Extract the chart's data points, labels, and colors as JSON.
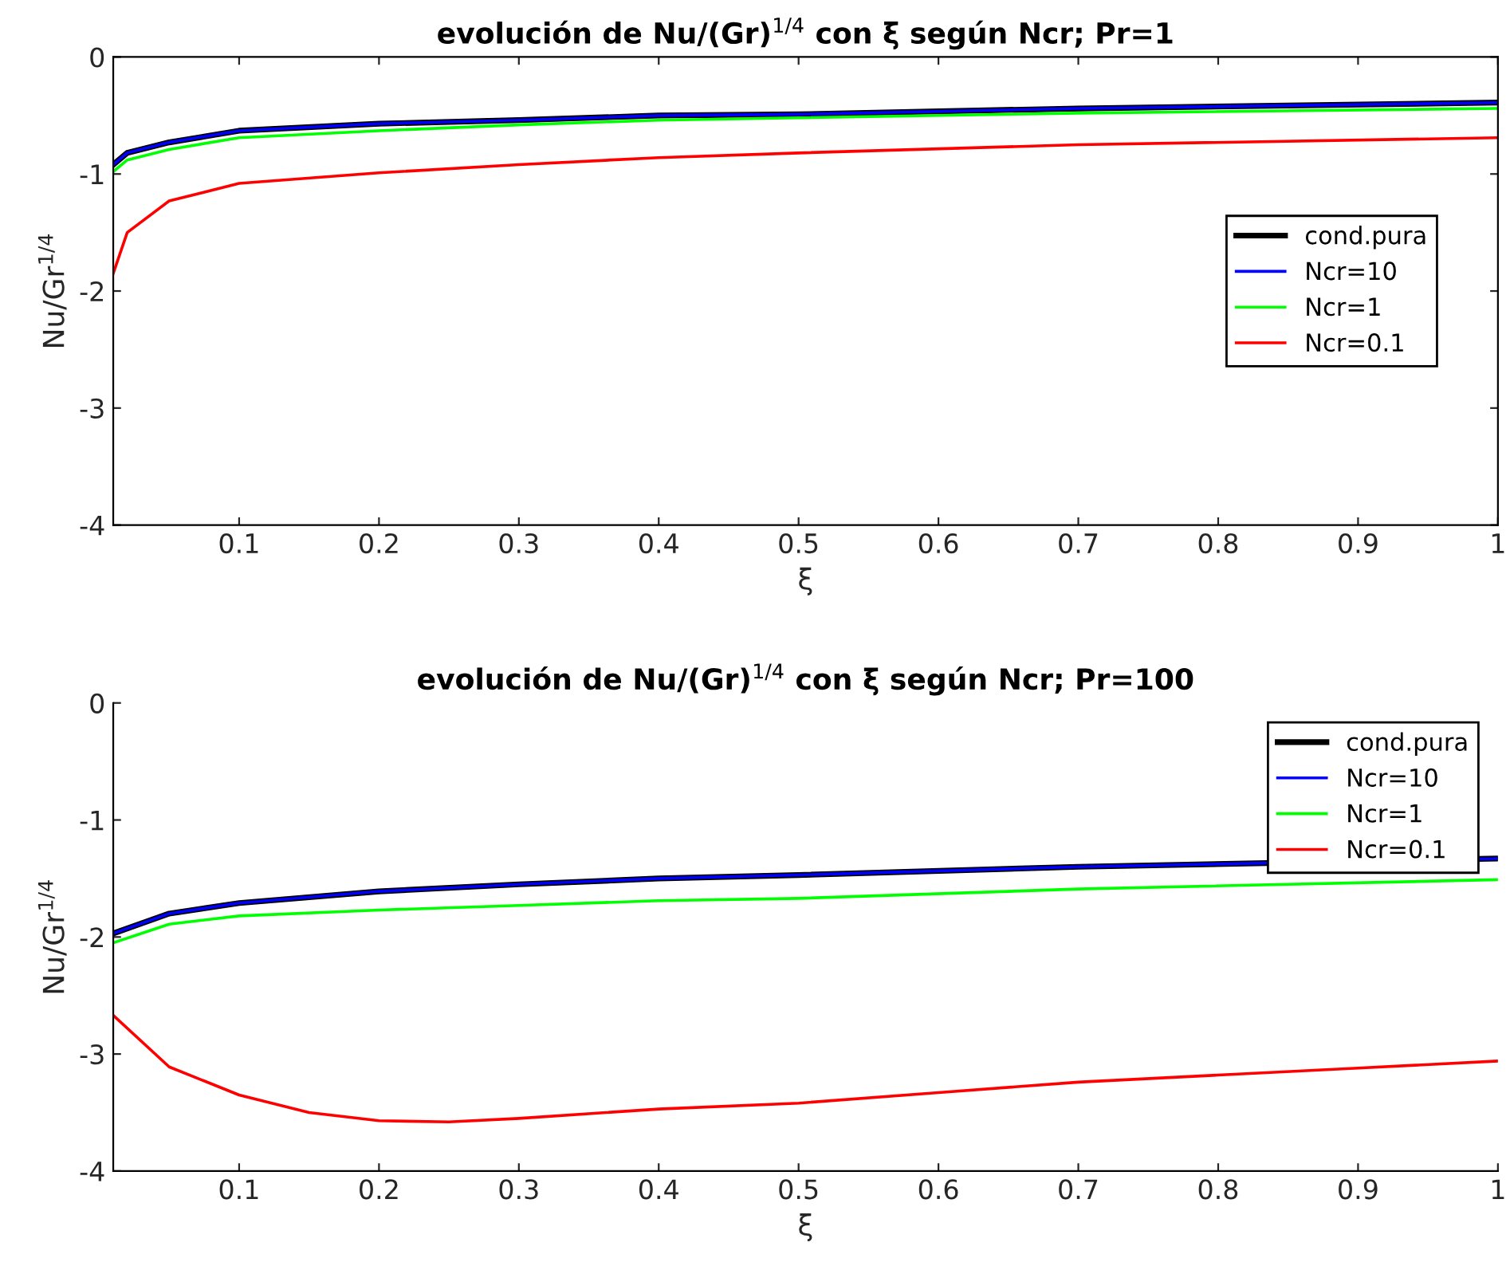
{
  "chart_data": [
    {
      "type": "line",
      "title": "evolución de Nu/(Gr)$^{1/4}$ con ξ según Ncr; Pr=1",
      "xlabel": "ξ",
      "ylabel": "Nu/Gr$^{1/4}$",
      "x": [
        0.01,
        0.02,
        0.05,
        0.1,
        0.2,
        0.3,
        0.4,
        0.5,
        0.7,
        1
      ],
      "series": [
        {
          "name": "cond.pura",
          "color": "#000000",
          "values": [
            -0.92,
            -0.82,
            -0.73,
            -0.63,
            -0.57,
            -0.54,
            -0.5,
            -0.49,
            -0.44,
            -0.39
          ]
        },
        {
          "name": "Ncr=10",
          "color": "#0000ff",
          "values": [
            -0.92,
            -0.82,
            -0.73,
            -0.63,
            -0.57,
            -0.54,
            -0.5,
            -0.49,
            -0.44,
            -0.39
          ]
        },
        {
          "name": "Ncr=1",
          "color": "#00ff00",
          "values": [
            -0.98,
            -0.88,
            -0.79,
            -0.69,
            -0.63,
            -0.58,
            -0.54,
            -0.52,
            -0.48,
            -0.44
          ]
        },
        {
          "name": "Ncr=0.1",
          "color": "#ff0000",
          "values": [
            -1.85,
            -1.5,
            -1.23,
            -1.08,
            -0.99,
            -0.92,
            -0.86,
            -0.82,
            -0.75,
            -0.69
          ]
        }
      ],
      "xlim": [
        0.01,
        1
      ],
      "xticks": [
        0.1,
        0.2,
        0.3,
        0.4,
        0.5,
        0.6,
        0.7,
        0.8,
        0.9,
        1
      ],
      "ylim": [
        -4,
        0
      ],
      "yticks": [
        -4,
        -3,
        -2,
        -1,
        0
      ],
      "legend": "center right",
      "grid": false
    },
    {
      "type": "line",
      "title": "evolución de Nu/(Gr)$^{1/4}$ con ξ según Ncr; Pr=100",
      "xlabel": "ξ",
      "ylabel": "Nu/Gr$^{1/4}$",
      "x": [
        0.01,
        0.05,
        0.1,
        0.2,
        0.3,
        0.4,
        0.5,
        0.7,
        1
      ],
      "series": [
        {
          "name": "cond.pura",
          "color": "#000000",
          "values": [
            -1.97,
            -1.8,
            -1.71,
            -1.61,
            -1.55,
            -1.5,
            -1.47,
            -1.4,
            -1.33
          ]
        },
        {
          "name": "Ncr=10",
          "color": "#0000ff",
          "values": [
            -1.97,
            -1.8,
            -1.71,
            -1.61,
            -1.55,
            -1.5,
            -1.47,
            -1.4,
            -1.33
          ]
        },
        {
          "name": "Ncr=1",
          "color": "#00ff00",
          "values": [
            -2.05,
            -1.89,
            -1.82,
            -1.77,
            -1.73,
            -1.69,
            -1.67,
            -1.59,
            -1.51
          ]
        },
        {
          "name": "Ncr=0.1",
          "color": "#ff0000",
          "x": [
            0.01,
            0.05,
            0.1,
            0.15,
            0.2,
            0.25,
            0.3,
            0.4,
            0.5,
            0.6,
            0.7,
            0.8,
            0.9,
            1
          ],
          "values": [
            -2.67,
            -3.11,
            -3.35,
            -3.5,
            -3.57,
            -3.58,
            -3.55,
            -3.47,
            -3.42,
            -3.33,
            -3.24,
            -3.18,
            -3.12,
            -3.06
          ]
        }
      ],
      "xlim": [
        0.01,
        1
      ],
      "xticks": [
        0.1,
        0.2,
        0.3,
        0.4,
        0.5,
        0.6,
        0.7,
        0.8,
        0.9,
        1
      ],
      "ylim": [
        -4,
        0
      ],
      "yticks": [
        -4,
        -3,
        -2,
        -1,
        0
      ],
      "legend": "upper right",
      "grid": false
    }
  ]
}
